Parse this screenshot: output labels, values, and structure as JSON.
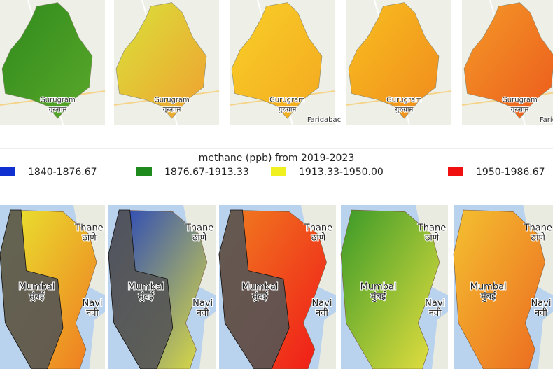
{
  "top_maps": [
    {
      "colors": [
        "#2f8a1c",
        "#5aa82a"
      ],
      "labels": [
        "Gurugram",
        "गुरुग्राम"
      ]
    },
    {
      "colors": [
        "#d9e23a",
        "#f0a030"
      ],
      "labels": [
        "Gurugram",
        "गुरुग्राम"
      ]
    },
    {
      "colors": [
        "#f8d028",
        "#f4a820"
      ],
      "labels": [
        "Gurugram",
        "गुरुग्राम",
        "Faridabac"
      ]
    },
    {
      "colors": [
        "#f8c020",
        "#f08a1c"
      ],
      "labels": [
        "Gurugram",
        "गुरुग्राम"
      ]
    },
    {
      "colors": [
        "#f49a28",
        "#ec5a1c"
      ],
      "labels": [
        "Gurugram",
        "गुरुग्राम",
        "Faridabac"
      ]
    }
  ],
  "legend": {
    "title": "methane (ppb) from 2019-2023",
    "items": [
      {
        "label": "1840-1876.67",
        "color": "#1030d0"
      },
      {
        "label": "1876.67-1913.33",
        "color": "#1e8a1e"
      },
      {
        "label": "1913.33-1950.00",
        "color": "#f0f020"
      },
      {
        "label": "1950-1986.67",
        "color": "#f01010"
      }
    ]
  },
  "bottom_maps": [
    {
      "colors": [
        "#e8e830",
        "#f07820"
      ],
      "overlay": true,
      "labels": [
        "Thane",
        "ठाणे",
        "Mumbai",
        "मुंबई",
        "Navi",
        "नवी"
      ]
    },
    {
      "colors": [
        "#2040c0",
        "#e0e040"
      ],
      "overlay": true,
      "labels": [
        "Thane",
        "ठाणे",
        "Mumbai",
        "मुंबई",
        "Navi",
        "नवी"
      ]
    },
    {
      "colors": [
        "#f08020",
        "#f01818"
      ],
      "overlay": true,
      "labels": [
        "Thane",
        "ठाणे",
        "Mumbai",
        "मुंबई",
        "Navi",
        "नवी"
      ]
    },
    {
      "colors": [
        "#3a9a28",
        "#e8e040"
      ],
      "overlay": false,
      "labels": [
        "Thane",
        "ठाणे",
        "Mumbai",
        "मुंबई",
        "Navi",
        "नवी"
      ]
    },
    {
      "colors": [
        "#f4c030",
        "#ec6a20"
      ],
      "overlay": false,
      "labels": [
        "Thane",
        "ठाणे",
        "Mumbai",
        "मुंबई",
        "Navi",
        "नवी"
      ]
    }
  ]
}
